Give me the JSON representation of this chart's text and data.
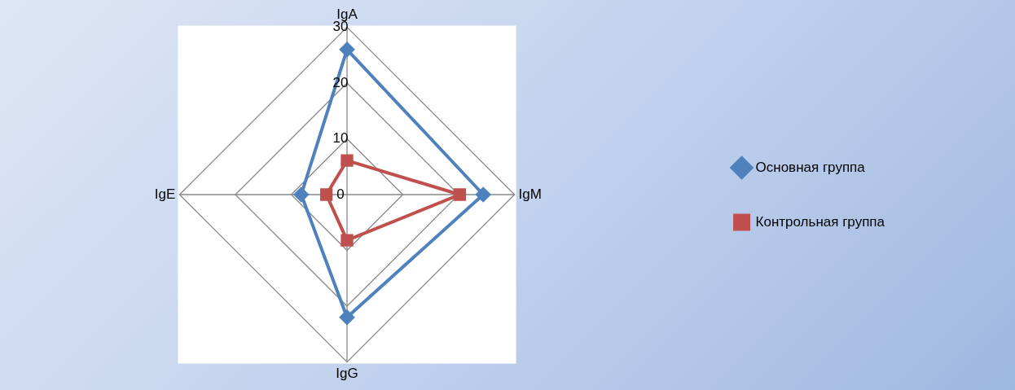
{
  "chart_data": {
    "type": "radar",
    "categories": [
      "IgA",
      "IgM",
      "IgG",
      "IgE"
    ],
    "series": [
      {
        "name": "Основная группа",
        "color": "#4f81bd",
        "marker": "diamond",
        "values": [
          26,
          24.4,
          22,
          8.2
        ]
      },
      {
        "name": "Контрольная группа",
        "color": "#c0504d",
        "marker": "square",
        "values": [
          6.1,
          20.2,
          8.2,
          3.7
        ]
      }
    ],
    "ylim": [
      0,
      30
    ],
    "yticks": [
      0,
      10,
      20,
      30
    ],
    "grid": true,
    "legend": "right",
    "line_style": "solid"
  }
}
